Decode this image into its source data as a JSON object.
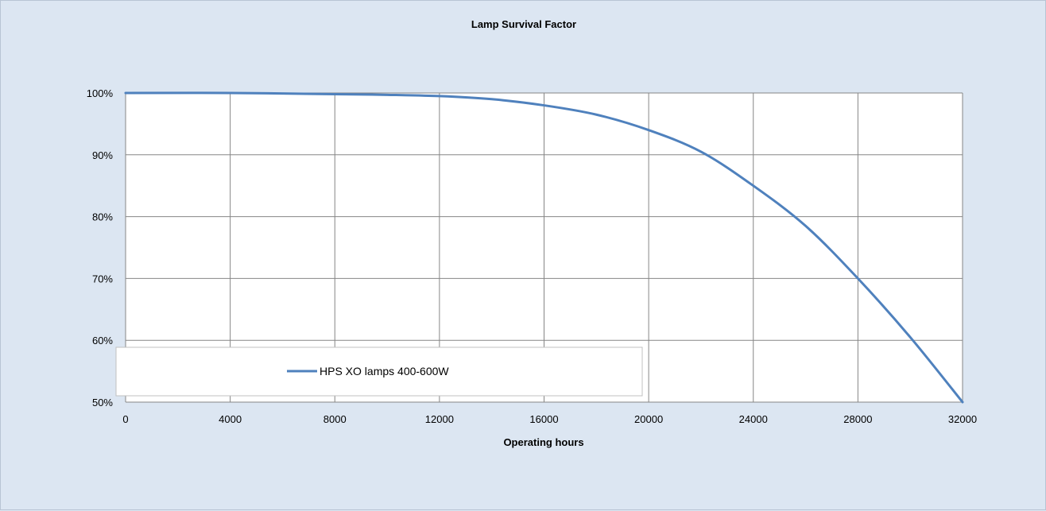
{
  "chart_data": {
    "type": "line",
    "title": "Lamp Survival Factor",
    "xlabel": "Operating hours",
    "ylabel": "",
    "xlim": [
      0,
      32000
    ],
    "ylim": [
      0.5,
      1.0
    ],
    "x_ticks": [
      0,
      4000,
      8000,
      12000,
      16000,
      20000,
      24000,
      28000,
      32000
    ],
    "y_ticks": [
      0.5,
      0.6,
      0.7,
      0.8,
      0.9,
      1.0
    ],
    "y_tick_labels": [
      "50%",
      "60%",
      "70%",
      "80%",
      "90%",
      "100%"
    ],
    "grid": true,
    "legend": "bottom-left",
    "series": [
      {
        "name": "HPS XO lamps 400-600W",
        "color": "#4f81bd",
        "x": [
          0,
          4000,
          8000,
          10000,
          12000,
          14000,
          16000,
          18000,
          20000,
          22000,
          24000,
          26000,
          28000,
          30000,
          32000
        ],
        "y": [
          1.0,
          1.0,
          0.998,
          0.997,
          0.995,
          0.99,
          0.98,
          0.965,
          0.94,
          0.905,
          0.85,
          0.785,
          0.7,
          0.605,
          0.5
        ]
      }
    ]
  }
}
